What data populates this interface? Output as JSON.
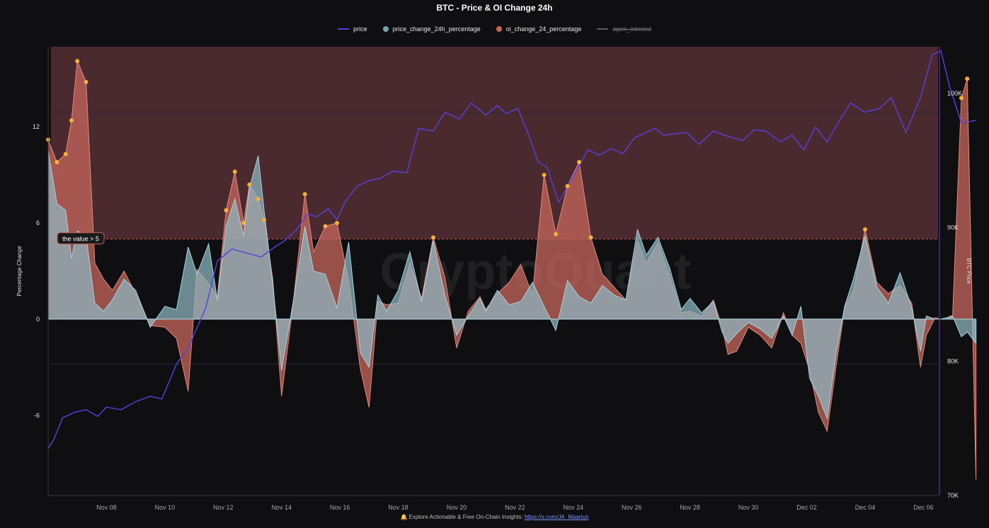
{
  "header": {
    "title": "BTC - Price & OI Change 24h"
  },
  "legend": [
    {
      "label": "price",
      "color": "#5b3fe0",
      "shape": "line",
      "hidden": false
    },
    {
      "label": "price_change_24h_percentage",
      "color": "#6fa6b4",
      "shape": "dot",
      "hidden": false
    },
    {
      "label": "oi_change_24_percentage",
      "color": "#c8675c",
      "shape": "dot",
      "hidden": false
    },
    {
      "label": "open_interest",
      "color": "#5c5c66",
      "shape": "line",
      "hidden": true
    }
  ],
  "footer": {
    "icon": "bell-icon",
    "text": "Explore Actionable & Free On-Chain Insights: ",
    "link": "https://x.com/JA_Maartun"
  },
  "watermark": "CryptoQuant",
  "annotation": {
    "label": "the value > 5",
    "threshold": 5
  },
  "chart_data": {
    "type": "area",
    "title": "BTC - Price & OI Change 24h",
    "xlabel": "",
    "ylabel": "Percentage Change",
    "ylabel_right": "BTC Price",
    "xlim": [
      "2024-11-06",
      "2024-12-06T12:00"
    ],
    "x_ticks": [
      "Nov 08",
      "Nov 10",
      "Nov 12",
      "Nov 14",
      "Nov 16",
      "Nov 18",
      "Nov 20",
      "Nov 22",
      "Nov 24",
      "Nov 26",
      "Nov 28",
      "Nov 30",
      "Dec 02",
      "Dec 04",
      "Dec 06"
    ],
    "y_left": {
      "ticks": [
        12,
        6,
        0,
        -6
      ],
      "range": [
        -11,
        17
      ]
    },
    "y_right": {
      "ticks": [
        "100K",
        "90K",
        "80K",
        "70K"
      ],
      "range": [
        70000,
        103500
      ]
    },
    "highlight_region": {
      "from": 5,
      "to": 17,
      "color": "#4a2a2e"
    },
    "colors": {
      "price": "#5b3fe0",
      "price_change": "#8fb8c4",
      "oi_change": "#c8675c",
      "marker": "#f2b23a"
    },
    "series": [
      {
        "name": "price",
        "axis": "right",
        "x": [
          0,
          0.2,
          0.5,
          0.9,
          1.3,
          1.7,
          2.0,
          2.5,
          3.0,
          3.5,
          3.9,
          4.4,
          4.8,
          5.4,
          5.8,
          6.3,
          6.8,
          7.3,
          7.8,
          8.1,
          8.5,
          8.9,
          9.2,
          9.6,
          9.9,
          10.2,
          10.6,
          11.0,
          11.4,
          11.8,
          12.3,
          12.7,
          13.2,
          13.6,
          14.1,
          14.5,
          15.0,
          15.4,
          15.7,
          16.1,
          16.4,
          16.8,
          17.1,
          17.5,
          18.0,
          18.5,
          18.9,
          19.3,
          19.7,
          20.1,
          20.5,
          20.8,
          21.1,
          21.5,
          21.9,
          22.3,
          22.8,
          23.3,
          23.8,
          24.2,
          24.6,
          25.1,
          25.5,
          25.9,
          26.3,
          26.7,
          27.1,
          27.5,
          28.0,
          28.5,
          28.9,
          29.4,
          29.9,
          30.3,
          30.6,
          30.9,
          31.3,
          31.8
        ],
        "values": [
          73500,
          74200,
          75800,
          76200,
          76400,
          75900,
          76600,
          76400,
          77000,
          77400,
          77200,
          79800,
          81000,
          84000,
          87500,
          88400,
          88100,
          87800,
          88600,
          89000,
          89800,
          91000,
          90800,
          91400,
          90600,
          92000,
          93100,
          93500,
          93700,
          94200,
          94100,
          97400,
          97200,
          98600,
          98100,
          99300,
          98400,
          99100,
          98500,
          98900,
          97300,
          94900,
          94500,
          91900,
          93800,
          95800,
          95400,
          95900,
          95500,
          96700,
          97100,
          97400,
          96900,
          97000,
          97100,
          96200,
          97200,
          96800,
          96500,
          97300,
          97200,
          96400,
          96900,
          95800,
          97500,
          96400,
          97900,
          99300,
          98600,
          98900,
          99700,
          97100,
          99700,
          102900,
          103200,
          100500,
          97800,
          98000
        ]
      },
      {
        "name": "price_change_24h_percentage",
        "axis": "left",
        "x": [
          0,
          0.3,
          0.6,
          0.8,
          1.0,
          1.3,
          1.6,
          1.9,
          2.2,
          2.6,
          3.0,
          3.5,
          4.0,
          4.4,
          4.8,
          5.1,
          5.5,
          5.8,
          6.1,
          6.4,
          6.7,
          6.9,
          7.2,
          7.4,
          7.7,
          8.0,
          8.4,
          8.8,
          9.1,
          9.5,
          9.9,
          10.3,
          10.7,
          11.0,
          11.3,
          11.6,
          12.0,
          12.4,
          12.8,
          13.2,
          13.6,
          14.0,
          14.4,
          14.8,
          15.0,
          15.4,
          15.8,
          16.2,
          16.6,
          17.0,
          17.4,
          17.8,
          18.2,
          18.6,
          19.0,
          19.4,
          19.8,
          20.2,
          20.5,
          20.9,
          21.3,
          21.7,
          22.0,
          22.4,
          22.8,
          23.1,
          23.3,
          23.6,
          24.0,
          24.4,
          24.8,
          25.2,
          25.5,
          25.8,
          26.1,
          26.4,
          26.7,
          27.0,
          27.3,
          27.6,
          28.0,
          28.4,
          28.8,
          29.2,
          29.6,
          29.9,
          30.1,
          30.4,
          30.6,
          30.8,
          30.9,
          31.0,
          31.3,
          31.5,
          31.8
        ],
        "values": [
          10.5,
          7.2,
          6.8,
          3.8,
          5.5,
          5.2,
          1.0,
          0.5,
          1.2,
          2.5,
          1.8,
          -0.5,
          0.8,
          0.6,
          4.5,
          2.8,
          4.7,
          1.2,
          5.8,
          7.5,
          5.2,
          8.2,
          10.2,
          6.8,
          2.2,
          -3.2,
          1.1,
          5.8,
          3.0,
          2.8,
          0.7,
          4.8,
          -2.1,
          -3.0,
          1.5,
          0.5,
          1.8,
          4.2,
          1.1,
          4.9,
          1.5,
          -1.0,
          0.2,
          1.3,
          0.5,
          1.8,
          0.9,
          1.1,
          2.3,
          0.8,
          -0.7,
          2.4,
          1.4,
          1.0,
          2.1,
          1.5,
          1.2,
          5.6,
          4.0,
          5.1,
          3.2,
          0.6,
          1.3,
          0.4,
          1.1,
          -0.8,
          -1.5,
          -0.9,
          -0.2,
          -0.6,
          -1.2,
          0.2,
          -1.0,
          0.8,
          -3.7,
          -4.8,
          -6.2,
          -2.2,
          0.8,
          2.5,
          5.2,
          2.0,
          1.0,
          2.9,
          0.7,
          -2.0,
          0.2,
          0.0,
          0.0,
          0.1,
          0.1,
          0.2,
          -1.1,
          -0.8,
          -1.5
        ]
      },
      {
        "name": "oi_change_24_percentage",
        "axis": "left",
        "x": [
          0,
          0.3,
          0.6,
          0.8,
          1.0,
          1.3,
          1.6,
          1.9,
          2.2,
          2.6,
          3.0,
          3.5,
          4.0,
          4.4,
          4.8,
          5.1,
          5.5,
          5.8,
          6.1,
          6.4,
          6.7,
          6.9,
          7.2,
          7.4,
          7.7,
          8.0,
          8.4,
          8.8,
          9.1,
          9.5,
          9.9,
          10.3,
          10.7,
          11.0,
          11.3,
          11.6,
          12.0,
          12.4,
          12.8,
          13.2,
          13.6,
          14.0,
          14.4,
          14.8,
          15.0,
          15.4,
          15.8,
          16.2,
          16.6,
          17.0,
          17.4,
          17.8,
          18.2,
          18.6,
          19.0,
          19.4,
          19.8,
          20.2,
          20.5,
          20.9,
          21.3,
          21.7,
          22.0,
          22.4,
          22.8,
          23.1,
          23.3,
          23.6,
          24.0,
          24.4,
          24.8,
          25.2,
          25.5,
          25.8,
          26.1,
          26.4,
          26.7,
          27.0,
          27.3,
          27.6,
          28.0,
          28.4,
          28.8,
          29.2,
          29.6,
          29.9,
          30.1,
          30.4,
          30.6,
          30.8,
          30.9,
          31.0,
          31.3,
          31.5,
          31.8
        ],
        "values": [
          11.2,
          9.8,
          10.3,
          12.4,
          16.1,
          14.8,
          3.5,
          2.5,
          1.8,
          3.0,
          1.6,
          -0.4,
          -0.5,
          -1.2,
          -4.5,
          3.1,
          2.2,
          1.4,
          6.8,
          9.2,
          6.0,
          8.4,
          7.5,
          6.2,
          2.5,
          -4.8,
          1.0,
          7.8,
          4.2,
          5.8,
          6.0,
          2.4,
          -3.1,
          -5.5,
          1.1,
          0.9,
          1.0,
          3.5,
          1.3,
          5.1,
          2.6,
          -1.8,
          0.5,
          1.4,
          0.6,
          1.6,
          2.3,
          3.4,
          1.5,
          9.0,
          5.3,
          8.3,
          9.8,
          5.1,
          2.8,
          2.0,
          1.2,
          4.9,
          3.5,
          4.8,
          2.7,
          0.4,
          0.5,
          0.2,
          1.2,
          -0.5,
          -2.2,
          -2.0,
          -0.5,
          -1.0,
          -1.8,
          0.4,
          -1.0,
          -1.5,
          -3.2,
          -5.8,
          -7.0,
          -3.0,
          0.7,
          1.8,
          5.6,
          2.3,
          1.6,
          2.1,
          1.0,
          -3.0,
          -1.0,
          0.1,
          0.0,
          0.0,
          0.2,
          0.2,
          13.8,
          15.0,
          -10.0
        ]
      }
    ]
  }
}
